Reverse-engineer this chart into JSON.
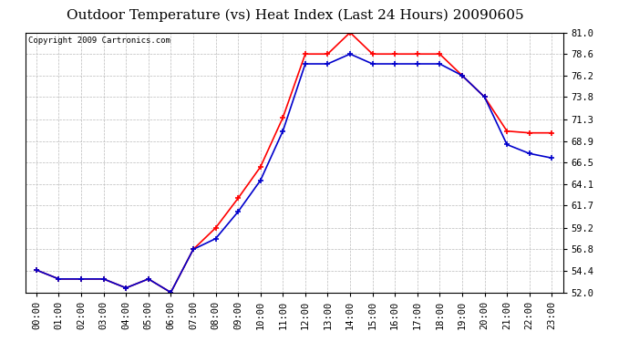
{
  "title": "Outdoor Temperature (vs) Heat Index (Last 24 Hours) 20090605",
  "copyright": "Copyright 2009 Cartronics.com",
  "hours": [
    "00:00",
    "01:00",
    "02:00",
    "03:00",
    "04:00",
    "05:00",
    "06:00",
    "07:00",
    "08:00",
    "09:00",
    "10:00",
    "11:00",
    "12:00",
    "13:00",
    "14:00",
    "15:00",
    "16:00",
    "17:00",
    "18:00",
    "19:00",
    "20:00",
    "21:00",
    "22:00",
    "23:00"
  ],
  "temp": [
    54.5,
    53.5,
    53.5,
    53.5,
    52.5,
    53.5,
    52.0,
    56.8,
    59.2,
    62.5,
    66.0,
    71.5,
    78.6,
    78.6,
    81.0,
    78.6,
    78.6,
    78.6,
    78.6,
    76.2,
    73.8,
    70.0,
    69.8,
    69.8
  ],
  "heat_index": [
    54.5,
    53.5,
    53.5,
    53.5,
    52.5,
    53.5,
    52.0,
    56.8,
    58.0,
    61.0,
    64.5,
    70.0,
    77.5,
    77.5,
    78.6,
    77.5,
    77.5,
    77.5,
    77.5,
    76.2,
    73.8,
    68.5,
    67.5,
    67.0
  ],
  "temp_color": "#FF0000",
  "heat_color": "#0000CC",
  "ylim_min": 52.0,
  "ylim_max": 81.0,
  "yticks": [
    52.0,
    54.4,
    56.8,
    59.2,
    61.7,
    64.1,
    66.5,
    68.9,
    71.3,
    73.8,
    76.2,
    78.6,
    81.0
  ],
  "bg_color": "#FFFFFF",
  "plot_bg": "#FFFFFF",
  "grid_color": "#BBBBBB",
  "title_fontsize": 11,
  "tick_fontsize": 7.5,
  "copyright_fontsize": 6.5
}
